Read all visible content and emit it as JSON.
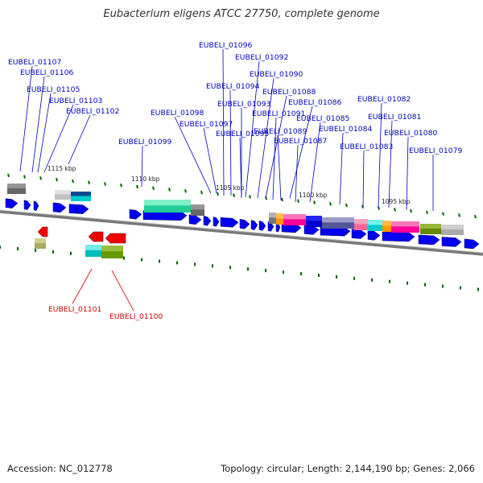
{
  "title": "Eubacterium eligens ATCC 27750, complete genome",
  "footer": {
    "accession": "Accession: NC_012778",
    "summary": "Topology: circular; Length: 2,144,190 bp; Genes: 2,066"
  },
  "colors": {
    "forward_gene": "#0000ee",
    "reverse_gene": "#ee0000",
    "label_forward": "#0000bb",
    "label_reverse": "#cc0000",
    "backbone": "#777777",
    "ticks": "#006600"
  },
  "scale_labels": [
    "1115 kbp",
    "1110 kbp",
    "1105 kbp",
    "1100 kbp",
    "1095 kbp"
  ],
  "forward_labels": [
    "EUBELI_01107",
    "EUBELI_01106",
    "EUBELI_01105",
    "EUBELI_01103",
    "EUBELI_01102",
    "EUBELI_01096",
    "EUBELI_01092",
    "EUBELI_01090",
    "EUBELI_01094",
    "EUBELI_01088",
    "EUBELI_01093",
    "EUBELI_01086",
    "EUBELI_01082",
    "EUBELI_01098",
    "EUBELI_01091",
    "EUBELI_01097",
    "EUBELI_01085",
    "EUBELI_01081",
    "EUBELI_01095",
    "EUBELI_01089",
    "EUBELI_01084",
    "EUBELI_01080",
    "EUBELI_01099",
    "EUBELI_01087",
    "EUBELI_01083",
    "EUBELI_01079"
  ],
  "reverse_labels": [
    "EUBELI_01101",
    "EUBELI_01100"
  ]
}
